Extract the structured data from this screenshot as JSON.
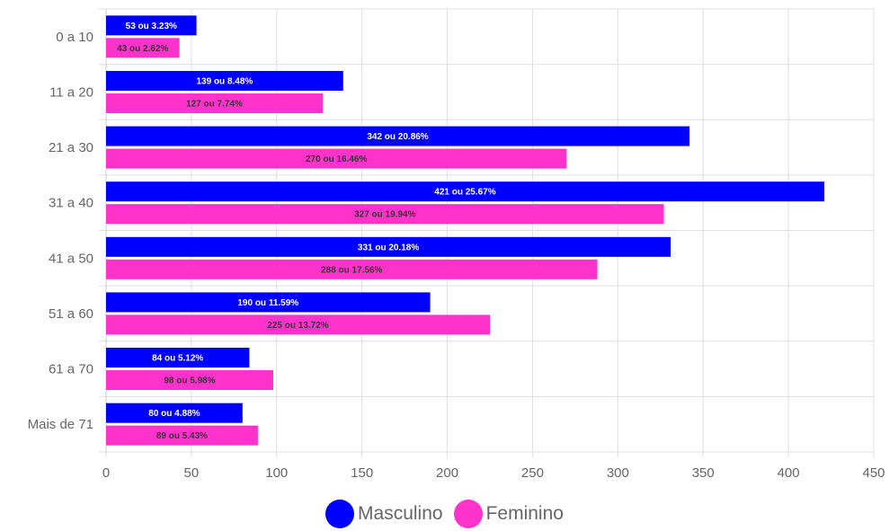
{
  "chart_data": {
    "type": "bar",
    "orientation": "horizontal",
    "categories": [
      "0 a 10",
      "11 a 20",
      "21 a 30",
      "31 a 40",
      "41 a 50",
      "51 a 60",
      "61 a 70",
      "Mais de 71"
    ],
    "series": [
      {
        "name": "Masculino",
        "color": "#0000ff",
        "values": [
          53,
          139,
          342,
          421,
          331,
          190,
          84,
          80
        ],
        "labels": [
          "53 ou 3.23%",
          "139 ou 8.48%",
          "342 ou 20.86%",
          "421 ou 25.67%",
          "331 ou 20.18%",
          "190 ou 11.59%",
          "84 ou 5.12%",
          "80 ou 4.88%"
        ]
      },
      {
        "name": "Feminino",
        "color": "#ff33cc",
        "values": [
          43,
          127,
          270,
          327,
          288,
          225,
          98,
          89
        ],
        "labels": [
          "43 ou 2.62%",
          "127 ou 7.74%",
          "270 ou 16.46%",
          "327 ou 19.94%",
          "288 ou 17.56%",
          "225 ou 13.72%",
          "98 ou 5.98%",
          "89 ou 5.43%"
        ]
      }
    ],
    "xlim": [
      0,
      450
    ],
    "xticks": [
      0,
      50,
      100,
      150,
      200,
      250,
      300,
      350,
      400,
      450
    ],
    "grid": true,
    "legend_position": "bottom"
  }
}
